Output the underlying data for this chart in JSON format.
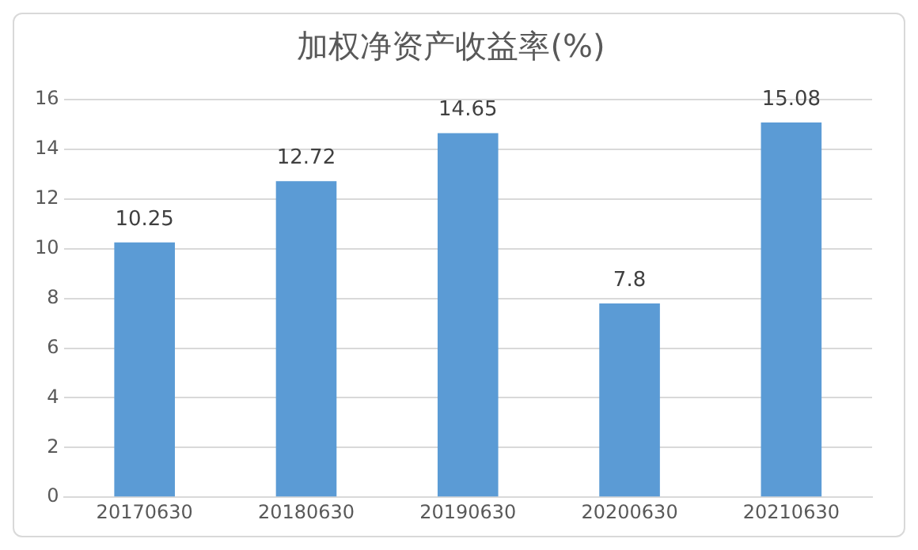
{
  "chart_data": {
    "type": "bar",
    "title": "加权净资产收益率(%)",
    "categories": [
      "20170630",
      "20180630",
      "20190630",
      "20200630",
      "20210630"
    ],
    "values": [
      10.25,
      12.72,
      14.65,
      7.8,
      15.08
    ],
    "color": "#5b9bd5",
    "ylim": [
      0,
      16
    ],
    "yticks": [
      0,
      2,
      4,
      6,
      8,
      10,
      12,
      14,
      16
    ],
    "grid": "y",
    "data_labels": true,
    "legend": false
  }
}
